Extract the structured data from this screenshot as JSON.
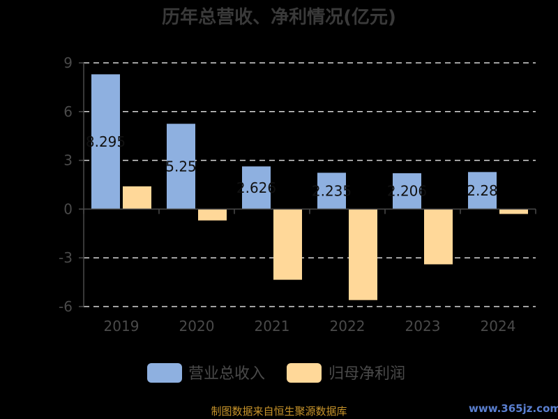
{
  "chart_data": {
    "type": "bar",
    "title": "历年总营收、净利情况(亿元)",
    "categories": [
      "2019",
      "2020",
      "2021",
      "2022",
      "2023",
      "2024"
    ],
    "series": [
      {
        "name": "营业总收入",
        "color": "#8eb0e0",
        "values": [
          8.295,
          5.25,
          2.626,
          2.235,
          2.206,
          2.28
        ],
        "labels": [
          "8.295",
          "5.25",
          "2.626",
          "2.235",
          "2.206",
          "2.28"
        ]
      },
      {
        "name": "归母净利润",
        "color": "#ffd899",
        "values": [
          1.4,
          -0.7,
          -4.35,
          -5.6,
          -3.4,
          -0.3
        ]
      }
    ],
    "yticks": [
      "9",
      "6",
      "3",
      "0",
      "-3",
      "-6"
    ],
    "ylim": [
      -6,
      9
    ],
    "grid": true,
    "legend_position": "bottom"
  },
  "footer": {
    "source": "制图数据来自恒生聚源数据库",
    "watermark": "www.365jz.com"
  }
}
